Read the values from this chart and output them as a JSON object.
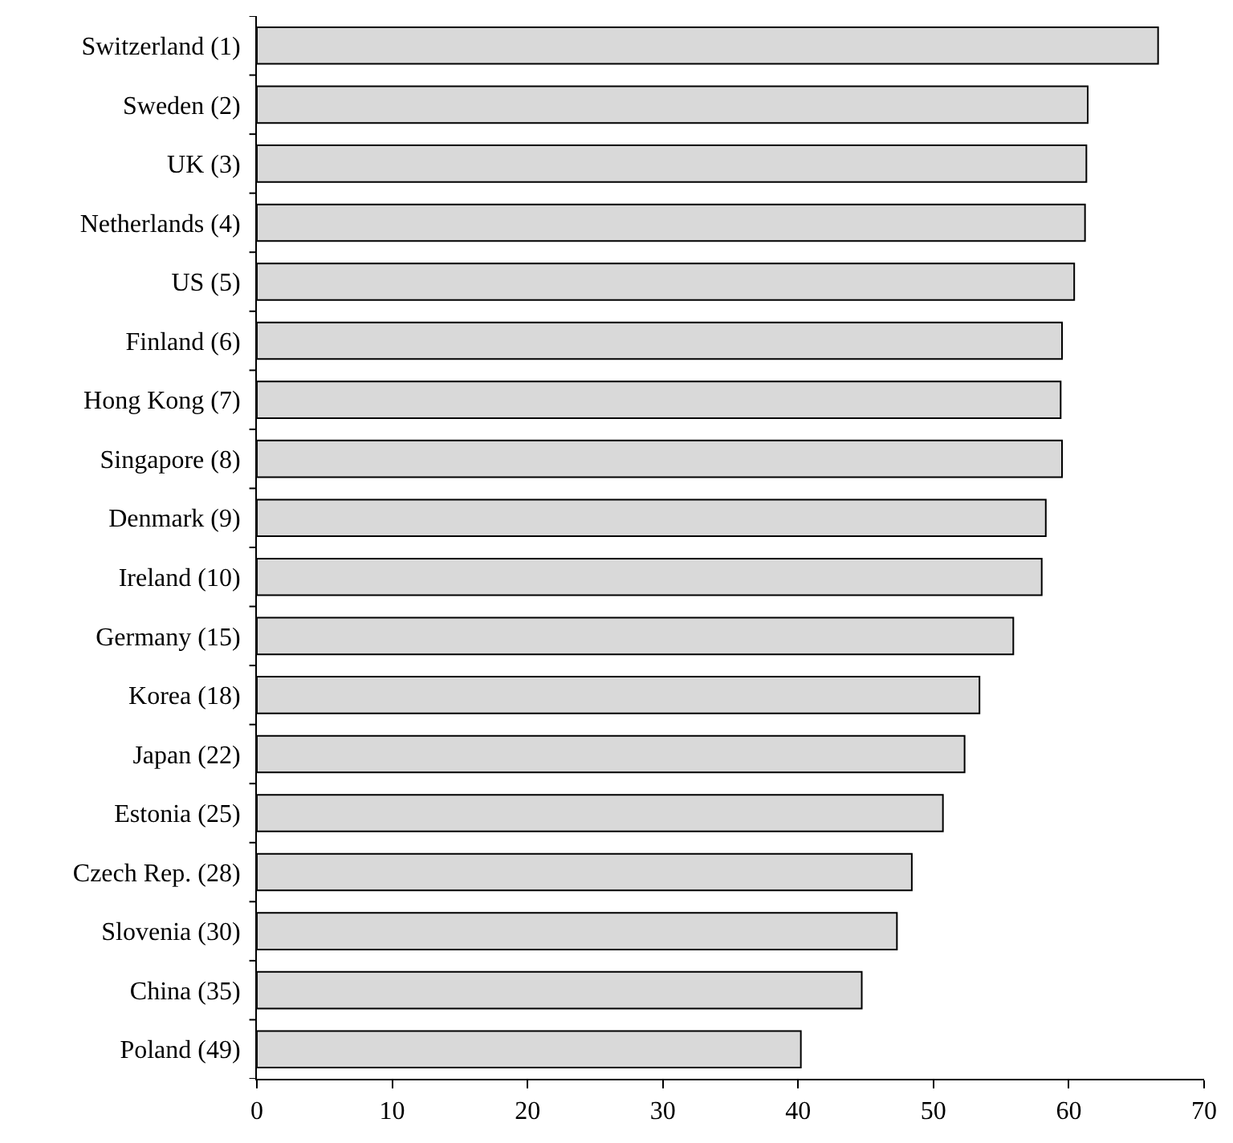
{
  "chart_data": {
    "type": "bar",
    "orientation": "horizontal",
    "categories": [
      "Switzerland (1)",
      "Sweden (2)",
      "UK (3)",
      "Netherlands (4)",
      "US (5)",
      "Finland (6)",
      "Hong Kong (7)",
      "Singapore (8)",
      "Denmark (9)",
      "Ireland (10)",
      "Germany (15)",
      "Korea (18)",
      "Japan (22)",
      "Estonia (25)",
      "Czech Rep. (28)",
      "Slovenia (30)",
      "China (35)",
      "Poland (49)"
    ],
    "values": [
      66.6,
      61.4,
      61.3,
      61.2,
      60.4,
      59.5,
      59.4,
      59.5,
      58.3,
      58.0,
      55.9,
      53.4,
      52.3,
      50.7,
      48.4,
      47.3,
      44.7,
      40.2
    ],
    "color": "#d9d9d9",
    "xlim": [
      0,
      70
    ],
    "xticks": [
      0,
      10,
      20,
      30,
      40,
      50,
      60,
      70
    ],
    "grid": false
  }
}
